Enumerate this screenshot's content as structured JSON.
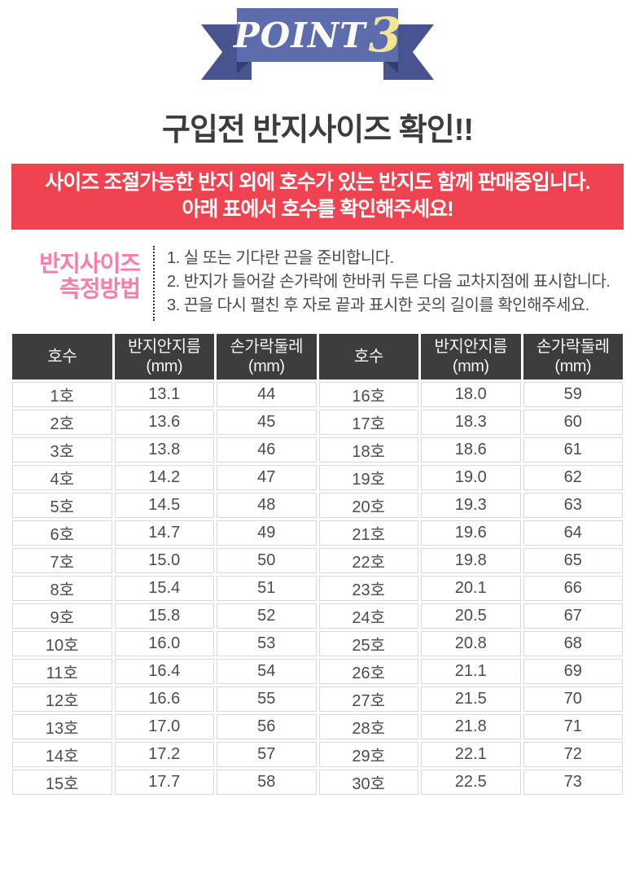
{
  "ribbon": {
    "word": "POINT",
    "number": "3"
  },
  "page_heading": "구입전 반지사이즈 확인!!",
  "notice": {
    "line1": "사이즈 조절가능한 반지 외에 호수가 있는 반지도 함께 판매중입니다.",
    "line2": "아래 표에서 호수를 확인해주세요!",
    "bg_color": "#ef4350"
  },
  "method": {
    "title_line1": "반지사이즈",
    "title_line2": "측정방법",
    "title_color": "#fb7caa",
    "steps": [
      "1. 실 또는 기다란 끈을 준비합니다.",
      "2. 반지가 들어갈 손가락에 한바퀴 두른 다음 교차지점에 표시합니다.",
      "3. 끈을 다시 펼친 후 자로 끝과 표시한 곳의 길이를 확인해주세요."
    ]
  },
  "size_table": {
    "header_bg": "#3d3d3d",
    "headers": [
      {
        "label": "호수",
        "unit": ""
      },
      {
        "label": "반지안지름",
        "unit": "(mm)"
      },
      {
        "label": "손가락둘레",
        "unit": "(mm)"
      },
      {
        "label": "호수",
        "unit": ""
      },
      {
        "label": "반지안지름",
        "unit": "(mm)"
      },
      {
        "label": "손가락둘레",
        "unit": "(mm)"
      }
    ],
    "rows": [
      [
        "1호",
        "13.1",
        "44",
        "16호",
        "18.0",
        "59"
      ],
      [
        "2호",
        "13.6",
        "45",
        "17호",
        "18.3",
        "60"
      ],
      [
        "3호",
        "13.8",
        "46",
        "18호",
        "18.6",
        "61"
      ],
      [
        "4호",
        "14.2",
        "47",
        "19호",
        "19.0",
        "62"
      ],
      [
        "5호",
        "14.5",
        "48",
        "20호",
        "19.3",
        "63"
      ],
      [
        "6호",
        "14.7",
        "49",
        "21호",
        "19.6",
        "64"
      ],
      [
        "7호",
        "15.0",
        "50",
        "22호",
        "19.8",
        "65"
      ],
      [
        "8호",
        "15.4",
        "51",
        "23호",
        "20.1",
        "66"
      ],
      [
        "9호",
        "15.8",
        "52",
        "24호",
        "20.5",
        "67"
      ],
      [
        "10호",
        "16.0",
        "53",
        "25호",
        "20.8",
        "68"
      ],
      [
        "11호",
        "16.4",
        "54",
        "26호",
        "21.1",
        "69"
      ],
      [
        "12호",
        "16.6",
        "55",
        "27호",
        "21.5",
        "70"
      ],
      [
        "13호",
        "17.0",
        "56",
        "28호",
        "21.8",
        "71"
      ],
      [
        "14호",
        "17.2",
        "57",
        "29호",
        "22.1",
        "72"
      ],
      [
        "15호",
        "17.7",
        "58",
        "30호",
        "22.5",
        "73"
      ]
    ]
  },
  "colors": {
    "ribbon_band": "#5d6cac",
    "ribbon_tail": "#47548f",
    "ribbon_fold": "#333e6e",
    "ribbon_number": "#f2e593",
    "notice_bg": "#ef4350",
    "method_title": "#fb7caa",
    "table_header_bg": "#3d3d3d",
    "cell_border": "#d9d9d9",
    "body_text": "#4c4c4c"
  }
}
